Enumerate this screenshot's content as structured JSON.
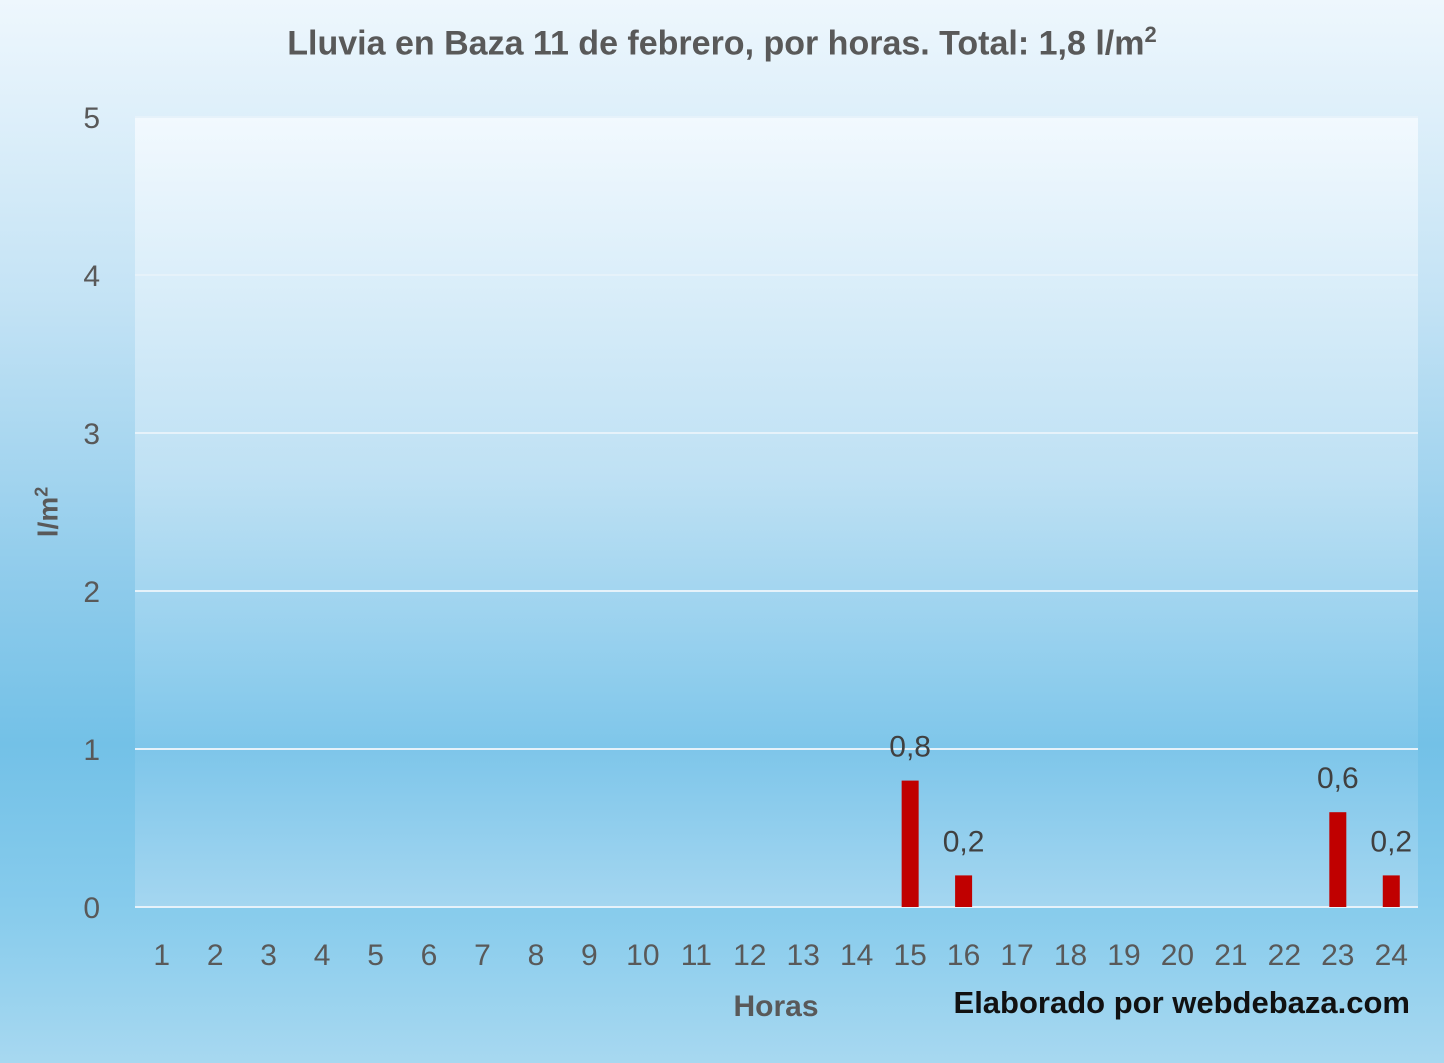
{
  "chart_data": {
    "type": "bar",
    "title": "Lluvia en Baza 11 de febrero, por horas. Total: 1,8 l/m",
    "title_sup": "2",
    "ylabel": "l/m",
    "ylabel_sup": "2",
    "xlabel": "Horas",
    "categories": [
      "1",
      "2",
      "3",
      "4",
      "5",
      "6",
      "7",
      "8",
      "9",
      "10",
      "11",
      "12",
      "13",
      "14",
      "15",
      "16",
      "17",
      "18",
      "19",
      "20",
      "21",
      "22",
      "23",
      "24"
    ],
    "values": [
      0,
      0,
      0,
      0,
      0,
      0,
      0,
      0,
      0,
      0,
      0,
      0,
      0,
      0,
      0.8,
      0.2,
      0,
      0,
      0,
      0,
      0,
      0,
      0.6,
      0.2
    ],
    "data_labels": [
      "",
      "",
      "",
      "",
      "",
      "",
      "",
      "",
      "",
      "",
      "",
      "",
      "",
      "",
      "0,8",
      "0,2",
      "",
      "",
      "",
      "",
      "",
      "",
      "0,6",
      "0,2"
    ],
    "ylim": [
      0,
      5
    ],
    "yticks": [
      "0",
      "1",
      "2",
      "3",
      "4",
      "5"
    ],
    "grid": true,
    "legend": "none",
    "bar_color": "#c00000",
    "gridline_color": "#e6f2fa"
  },
  "credit": "Elaborado por webdebaza.com"
}
